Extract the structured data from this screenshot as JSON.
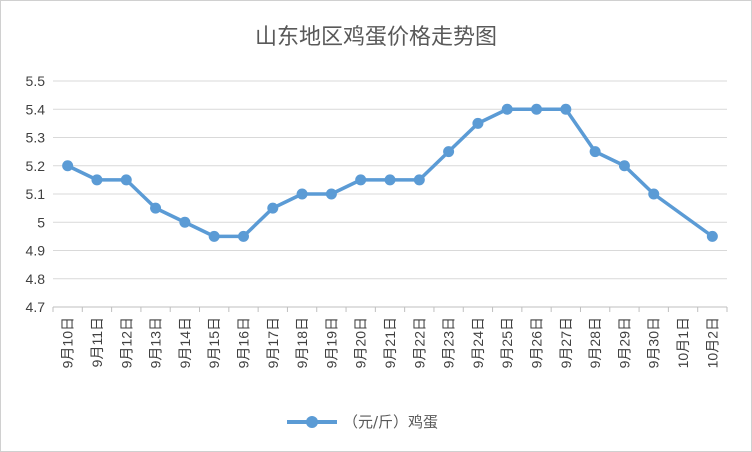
{
  "chart_data": {
    "type": "line",
    "title": "山东地区鸡蛋价格走势图",
    "categories": [
      "9月10日",
      "9月11日",
      "9月12日",
      "9月13日",
      "9月14日",
      "9月15日",
      "9月16日",
      "9月17日",
      "9月18日",
      "9月19日",
      "9月20日",
      "9月21日",
      "9月22日",
      "9月23日",
      "9月24日",
      "9月25日",
      "9月26日",
      "9月27日",
      "9月28日",
      "9月29日",
      "9月30日",
      "10月1日",
      "10月2日"
    ],
    "series": [
      {
        "name": "（元/斤）鸡蛋",
        "values": [
          5.2,
          5.15,
          5.15,
          5.05,
          5.0,
          4.95,
          4.95,
          5.05,
          5.1,
          5.1,
          5.15,
          5.15,
          5.15,
          5.25,
          5.35,
          5.4,
          5.4,
          5.4,
          5.25,
          5.2,
          5.1,
          null,
          4.95
        ],
        "color": "#5b9bd5"
      }
    ],
    "ylim": [
      4.7,
      5.5
    ],
    "yticks": [
      "5.5",
      "5.4",
      "5.3",
      "5.2",
      "5.1",
      "5",
      "4.9",
      "4.8",
      "4.7"
    ],
    "grid": true,
    "legend_position": "bottom",
    "connect_gaps": true
  }
}
